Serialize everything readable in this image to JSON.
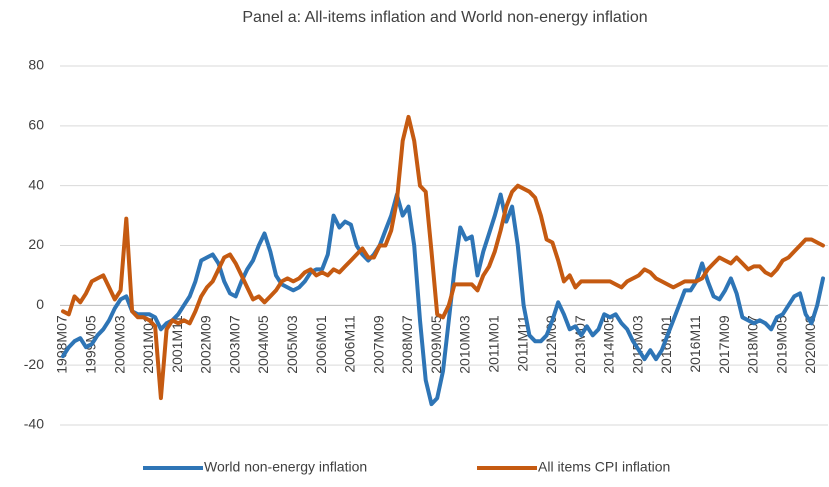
{
  "chart_data": {
    "type": "line",
    "title": "Panel a: All-items inflation and World non-energy inflation",
    "categories": [
      "1998M07",
      null,
      null,
      null,
      null,
      "1999M05",
      null,
      null,
      null,
      null,
      "2000M03",
      null,
      null,
      null,
      null,
      "2001M01",
      null,
      null,
      null,
      null,
      "2001M11",
      null,
      null,
      null,
      null,
      "2002M09",
      null,
      null,
      null,
      null,
      "2003M07",
      null,
      null,
      null,
      null,
      "2004M05",
      null,
      null,
      null,
      null,
      "2005M03",
      null,
      null,
      null,
      null,
      "2006M01",
      null,
      null,
      null,
      null,
      "2006M11",
      null,
      null,
      null,
      null,
      "2007M09",
      null,
      null,
      null,
      null,
      "2008M07",
      null,
      null,
      null,
      null,
      "2009M05",
      null,
      null,
      null,
      null,
      "2010M03",
      null,
      null,
      null,
      null,
      "2011M01",
      null,
      null,
      null,
      null,
      "2011M11",
      null,
      null,
      null,
      null,
      "2012M09",
      null,
      null,
      null,
      null,
      "2013M07",
      null,
      null,
      null,
      null,
      "2014M05",
      null,
      null,
      null,
      null,
      "2015M03",
      null,
      null,
      null,
      null,
      "2016M01",
      null,
      null,
      null,
      null,
      "2016M11",
      null,
      null,
      null,
      null,
      "2017M09",
      null,
      null,
      null,
      null,
      "2018M07",
      null,
      null,
      null,
      null,
      "2019M05",
      null,
      null,
      null,
      null,
      "2020M03",
      null,
      null
    ],
    "series": [
      {
        "name": "World non-energy inflation",
        "color": "#2e75b6",
        "values": [
          -17,
          -14,
          -12,
          -11,
          -14,
          -13,
          -10,
          -8,
          -5,
          -1,
          2,
          3,
          -2,
          -3,
          -3,
          -3,
          -4,
          -8,
          -6,
          -5,
          -3,
          0,
          3,
          8,
          15,
          16,
          17,
          14,
          8,
          4,
          3,
          8,
          12,
          15,
          20,
          24,
          18,
          10,
          7,
          6,
          5,
          6,
          8,
          11,
          12,
          12,
          17,
          30,
          26,
          28,
          27,
          20,
          17,
          15,
          17,
          20,
          25,
          30,
          37,
          30,
          33,
          20,
          -5,
          -25,
          -33,
          -31,
          -22,
          -5,
          12,
          26,
          22,
          23,
          10,
          18,
          24,
          30,
          37,
          28,
          33,
          20,
          0,
          -10,
          -12,
          -12,
          -10,
          -5,
          1,
          -3,
          -8,
          -7,
          -10,
          -7,
          -10,
          -8,
          -3,
          -4,
          -3,
          -6,
          -8,
          -12,
          -15,
          -18,
          -15,
          -18,
          -15,
          -10,
          -5,
          0,
          5,
          5,
          8,
          14,
          8,
          3,
          2,
          5,
          9,
          4,
          -4,
          -5,
          -6,
          -5,
          -6,
          -8,
          -4,
          -3,
          0,
          3,
          4,
          -3,
          -6,
          0,
          9
        ]
      },
      {
        "name": "All items CPI inflation",
        "color": "#c55a11",
        "values": [
          -2,
          -3,
          3,
          1,
          4,
          8,
          9,
          10,
          6,
          2,
          5,
          29,
          -2,
          -4,
          -4,
          -5,
          -7,
          -31,
          -8,
          -5,
          -6,
          -5,
          -6,
          -2,
          3,
          6,
          8,
          12,
          16,
          17,
          14,
          10,
          6,
          2,
          3,
          1,
          3,
          5,
          8,
          9,
          8,
          9,
          11,
          12,
          10,
          11,
          10,
          12,
          11,
          13,
          15,
          17,
          19,
          16,
          16,
          20,
          20,
          25,
          35,
          55,
          63,
          55,
          40,
          38,
          18,
          -3,
          -4,
          0,
          7,
          7,
          7,
          7,
          5,
          10,
          13,
          18,
          25,
          33,
          38,
          40,
          39,
          38,
          36,
          30,
          22,
          21,
          15,
          8,
          10,
          6,
          8,
          8,
          8,
          8,
          8,
          8,
          7,
          6,
          8,
          9,
          10,
          12,
          11,
          9,
          8,
          7,
          6,
          7,
          8,
          8,
          8,
          9,
          12,
          14,
          16,
          15,
          14,
          16,
          14,
          12,
          13,
          13,
          11,
          10,
          12,
          15,
          16,
          18,
          20,
          22,
          22,
          21,
          20
        ]
      }
    ],
    "ylim": [
      -40,
      80
    ],
    "yticks": [
      -40,
      -20,
      0,
      20,
      40,
      60,
      80
    ],
    "grid": true,
    "legend": "bottom"
  }
}
